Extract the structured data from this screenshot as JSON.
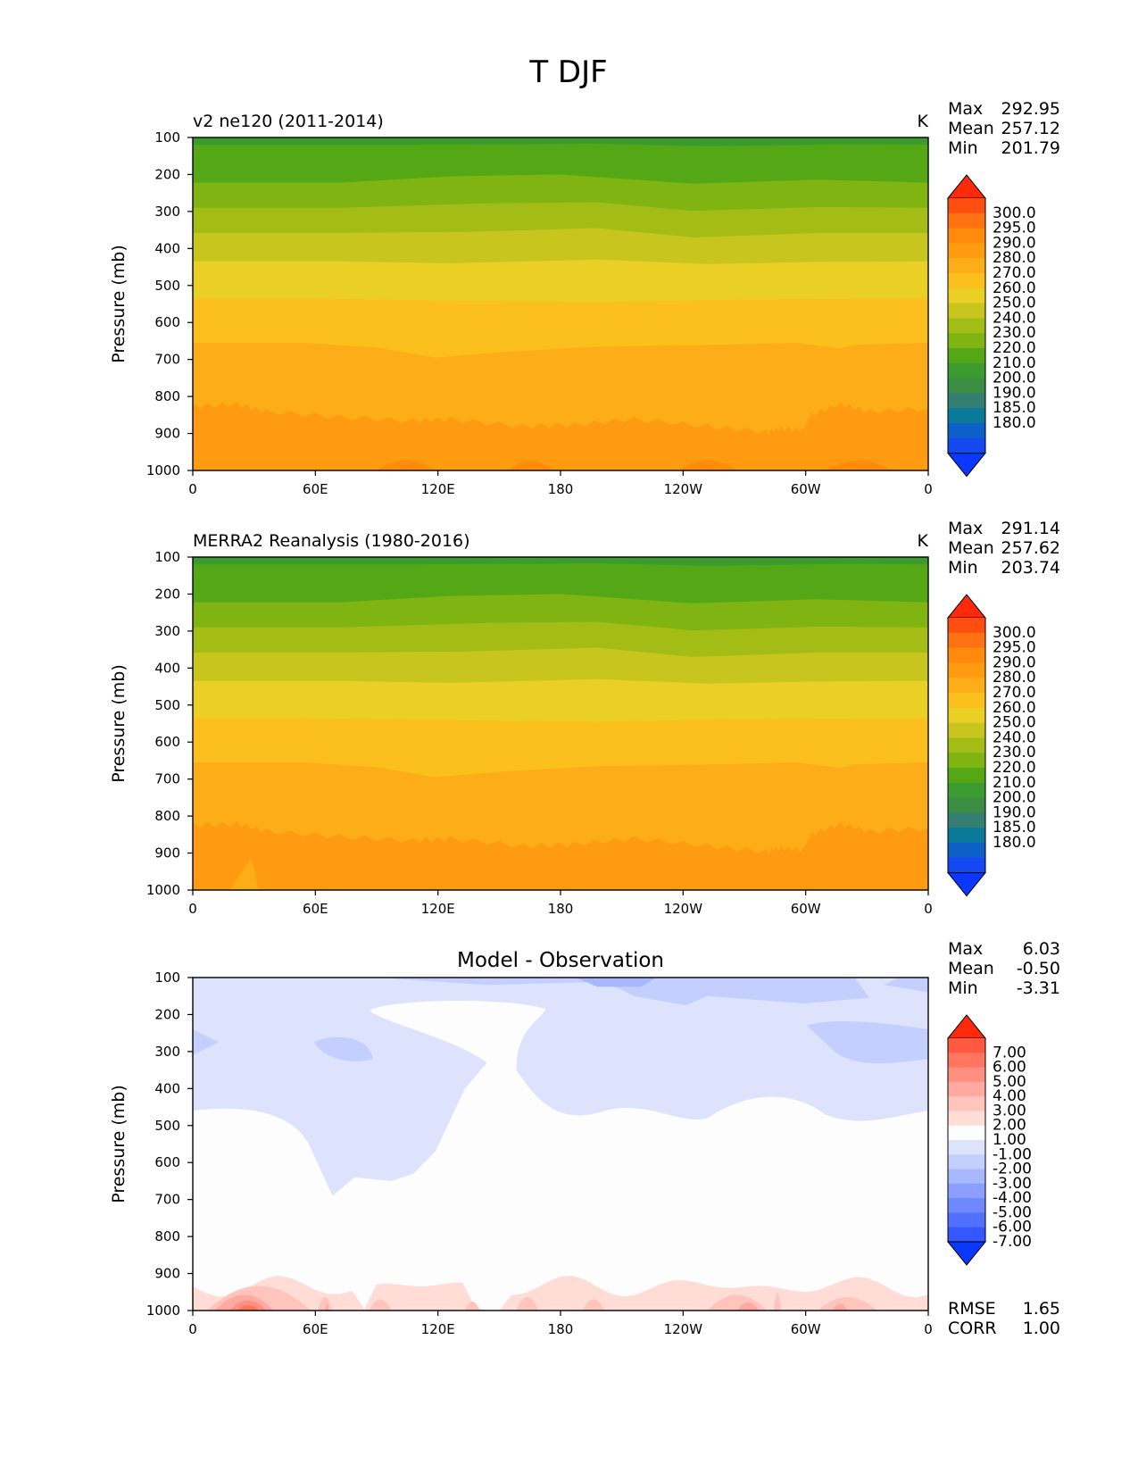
{
  "title": "T DJF",
  "chart_data": [
    {
      "type": "contour",
      "panel": "test",
      "title_left": "v2 ne120 (2011-2014)",
      "title_center": "",
      "units": "K",
      "ylabel": "Pressure (mb)",
      "x_ticks": [
        "0",
        "60E",
        "120E",
        "180",
        "120W",
        "60W",
        "0"
      ],
      "y_ticks": [
        "100",
        "200",
        "300",
        "400",
        "500",
        "600",
        "700",
        "800",
        "900",
        "1000"
      ],
      "ylim": [
        100,
        1000
      ],
      "stats": [
        {
          "label": "Max",
          "value": "292.95"
        },
        {
          "label": "Mean",
          "value": "257.12"
        },
        {
          "label": "Min",
          "value": "201.79"
        }
      ],
      "colorbar_labels": [
        "300.0",
        "295.0",
        "290.0",
        "280.0",
        "270.0",
        "260.0",
        "250.0",
        "240.0",
        "230.0",
        "220.0",
        "210.0",
        "200.0",
        "190.0",
        "185.0",
        "180.0"
      ],
      "colorbar_colors": [
        "#ff2a0a",
        "#ff4f10",
        "#ff7212",
        "#ff8a0c",
        "#ff9b10",
        "#fdad17",
        "#fcc01e",
        "#eacf24",
        "#c8c51e",
        "#a3bc16",
        "#7fb412",
        "#55a815",
        "#3c9b2f",
        "#3b8d44",
        "#347f72",
        "#0a7a9a",
        "#0c60c8",
        "#1448f0",
        "#0a38ff"
      ]
    },
    {
      "type": "contour",
      "panel": "reference",
      "title_left": "MERRA2 Reanalysis (1980-2016)",
      "title_center": "",
      "units": "K",
      "ylabel": "Pressure (mb)",
      "x_ticks": [
        "0",
        "60E",
        "120E",
        "180",
        "120W",
        "60W",
        "0"
      ],
      "y_ticks": [
        "100",
        "200",
        "300",
        "400",
        "500",
        "600",
        "700",
        "800",
        "900",
        "1000"
      ],
      "ylim": [
        100,
        1000
      ],
      "stats": [
        {
          "label": "Max",
          "value": "291.14"
        },
        {
          "label": "Mean",
          "value": "257.62"
        },
        {
          "label": "Min",
          "value": "203.74"
        }
      ],
      "colorbar_labels": [
        "300.0",
        "295.0",
        "290.0",
        "280.0",
        "270.0",
        "260.0",
        "250.0",
        "240.0",
        "230.0",
        "220.0",
        "210.0",
        "200.0",
        "190.0",
        "185.0",
        "180.0"
      ],
      "colorbar_colors": [
        "#ff2a0a",
        "#ff4f10",
        "#ff7212",
        "#ff8a0c",
        "#ff9b10",
        "#fdad17",
        "#fcc01e",
        "#eacf24",
        "#c8c51e",
        "#a3bc16",
        "#7fb412",
        "#55a815",
        "#3c9b2f",
        "#3b8d44",
        "#347f72",
        "#0a7a9a",
        "#0c60c8",
        "#1448f0",
        "#0a38ff"
      ]
    },
    {
      "type": "contour",
      "panel": "difference",
      "title_left": "",
      "title_center": "Model - Observation",
      "units": "",
      "ylabel": "Pressure (mb)",
      "x_ticks": [
        "0",
        "60E",
        "120E",
        "180",
        "120W",
        "60W",
        "0"
      ],
      "y_ticks": [
        "100",
        "200",
        "300",
        "400",
        "500",
        "600",
        "700",
        "800",
        "900",
        "1000"
      ],
      "ylim": [
        100,
        1000
      ],
      "stats": [
        {
          "label": "Max",
          "value": "6.03"
        },
        {
          "label": "Mean",
          "value": "-0.50"
        },
        {
          "label": "Min",
          "value": "-3.31"
        }
      ],
      "colorbar_labels": [
        "7.00",
        "6.00",
        "5.00",
        "4.00",
        "3.00",
        "2.00",
        "1.00",
        "-1.00",
        "-2.00",
        "-3.00",
        "-4.00",
        "-5.00",
        "-6.00",
        "-7.00"
      ],
      "colorbar_colors": [
        "#ff2a0a",
        "#ff5a40",
        "#ff7560",
        "#ff9080",
        "#ffaaa0",
        "#ffc4bb",
        "#ffdcd6",
        "#fdfdfd",
        "#dde3fd",
        "#c4ceff",
        "#a7b8ff",
        "#8c9eff",
        "#6f87ff",
        "#5270ff",
        "#3458ff",
        "#0a38ff"
      ],
      "metrics": [
        {
          "label": "RMSE",
          "value": "1.65"
        },
        {
          "label": "CORR",
          "value": "1.00"
        }
      ]
    }
  ]
}
